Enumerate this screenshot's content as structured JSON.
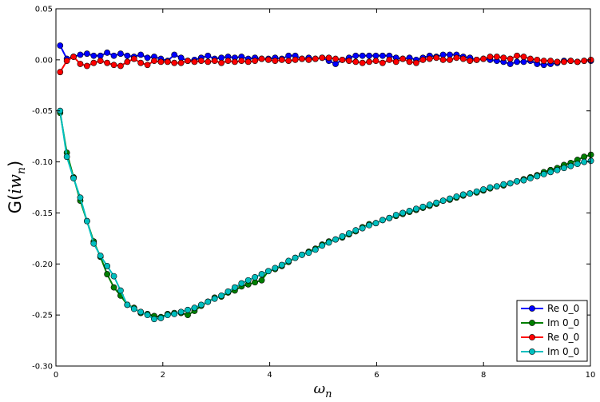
{
  "chart_data": {
    "type": "line",
    "xlabel": "ω_n",
    "ylabel": "G(iw_n)",
    "xlim": [
      0,
      10
    ],
    "ylim": [
      -0.3,
      0.05
    ],
    "xticks": [
      "0",
      "2",
      "4",
      "6",
      "8",
      "10"
    ],
    "yticks": [
      "0.05",
      "0.00",
      "-0.05",
      "-0.10",
      "-0.15",
      "-0.20",
      "-0.25",
      "-0.30"
    ],
    "grid": false,
    "legend_position": "lower-right",
    "x_start": 0.0785,
    "x_step": 0.1257,
    "series": [
      {
        "name": "Re 0_0",
        "color": "#0000ff",
        "values": [
          0.014,
          0.001,
          0.003,
          0.005,
          0.006,
          0.004,
          0.004,
          0.007,
          0.004,
          0.006,
          0.004,
          0.003,
          0.005,
          0.002,
          0.003,
          0.001,
          -0.001,
          0.005,
          0.002,
          -0.001,
          0.0,
          0.002,
          0.004,
          0.001,
          0.002,
          0.003,
          0.002,
          0.003,
          0.001,
          0.002,
          0.001,
          0.001,
          0.002,
          0.001,
          0.004,
          0.004,
          0.001,
          0.002,
          0.001,
          0.002,
          -0.001,
          -0.004,
          0.0,
          0.002,
          0.004,
          0.004,
          0.004,
          0.004,
          0.004,
          0.004,
          0.002,
          0.001,
          0.002,
          0.0,
          0.002,
          0.004,
          0.003,
          0.005,
          0.005,
          0.005,
          0.003,
          0.002,
          0.0,
          0.001,
          0.0,
          -0.001,
          -0.002,
          -0.004,
          -0.002,
          -0.002,
          -0.001,
          -0.004,
          -0.005,
          -0.004,
          -0.003,
          -0.001,
          -0.001,
          -0.002,
          -0.001,
          -0.001
        ]
      },
      {
        "name": "Im 0_0",
        "color": "#007f00",
        "values": [
          -0.052,
          -0.091,
          -0.115,
          -0.138,
          -0.158,
          -0.178,
          -0.193,
          -0.21,
          -0.223,
          -0.231,
          -0.24,
          -0.243,
          -0.248,
          -0.249,
          -0.251,
          -0.252,
          -0.249,
          -0.248,
          -0.248,
          -0.25,
          -0.246,
          -0.241,
          -0.237,
          -0.233,
          -0.232,
          -0.228,
          -0.226,
          -0.222,
          -0.22,
          -0.218,
          -0.216,
          -0.207,
          -0.205,
          -0.202,
          -0.198,
          -0.194,
          -0.191,
          -0.188,
          -0.185,
          -0.181,
          -0.178,
          -0.176,
          -0.174,
          -0.171,
          -0.168,
          -0.164,
          -0.161,
          -0.16,
          -0.157,
          -0.155,
          -0.153,
          -0.151,
          -0.149,
          -0.147,
          -0.145,
          -0.143,
          -0.141,
          -0.138,
          -0.137,
          -0.135,
          -0.133,
          -0.131,
          -0.13,
          -0.128,
          -0.126,
          -0.124,
          -0.123,
          -0.121,
          -0.119,
          -0.117,
          -0.115,
          -0.113,
          -0.11,
          -0.108,
          -0.106,
          -0.103,
          -0.101,
          -0.098,
          -0.095,
          -0.093
        ]
      },
      {
        "name": "Re 0_0",
        "color": "#ff0000",
        "values": [
          -0.012,
          -0.001,
          0.003,
          -0.004,
          -0.006,
          -0.003,
          -0.001,
          -0.003,
          -0.005,
          -0.006,
          -0.002,
          0.001,
          -0.003,
          -0.005,
          -0.001,
          -0.002,
          -0.002,
          -0.003,
          -0.003,
          -0.001,
          -0.002,
          -0.001,
          -0.002,
          -0.001,
          -0.003,
          -0.001,
          -0.002,
          -0.001,
          -0.002,
          -0.001,
          0.001,
          0.0,
          -0.001,
          0.0,
          -0.001,
          0.0,
          0.001,
          0.0,
          0.001,
          0.002,
          0.002,
          0.001,
          0.0,
          -0.001,
          -0.002,
          -0.003,
          -0.002,
          -0.001,
          -0.003,
          0.0,
          -0.002,
          0.001,
          -0.002,
          -0.003,
          0.0,
          0.001,
          0.002,
          0.0,
          0.0,
          0.002,
          0.001,
          -0.001,
          0.0,
          0.001,
          0.003,
          0.003,
          0.002,
          0.001,
          0.004,
          0.003,
          0.001,
          0.0,
          -0.001,
          -0.001,
          -0.002,
          -0.002,
          -0.001,
          -0.002,
          -0.001,
          0.0
        ]
      },
      {
        "name": "Im 0_0",
        "color": "#00bfbf",
        "values": [
          -0.05,
          -0.095,
          -0.116,
          -0.135,
          -0.158,
          -0.18,
          -0.192,
          -0.202,
          -0.212,
          -0.226,
          -0.24,
          -0.244,
          -0.247,
          -0.25,
          -0.254,
          -0.253,
          -0.25,
          -0.249,
          -0.247,
          -0.245,
          -0.243,
          -0.24,
          -0.237,
          -0.234,
          -0.231,
          -0.227,
          -0.223,
          -0.219,
          -0.216,
          -0.213,
          -0.21,
          -0.207,
          -0.204,
          -0.201,
          -0.197,
          -0.194,
          -0.191,
          -0.189,
          -0.186,
          -0.182,
          -0.179,
          -0.176,
          -0.173,
          -0.17,
          -0.167,
          -0.165,
          -0.162,
          -0.16,
          -0.157,
          -0.155,
          -0.152,
          -0.15,
          -0.148,
          -0.146,
          -0.144,
          -0.142,
          -0.14,
          -0.138,
          -0.136,
          -0.134,
          -0.132,
          -0.131,
          -0.129,
          -0.127,
          -0.125,
          -0.124,
          -0.122,
          -0.121,
          -0.119,
          -0.118,
          -0.116,
          -0.114,
          -0.112,
          -0.11,
          -0.108,
          -0.106,
          -0.104,
          -0.102,
          -0.1,
          -0.099
        ]
      }
    ]
  }
}
